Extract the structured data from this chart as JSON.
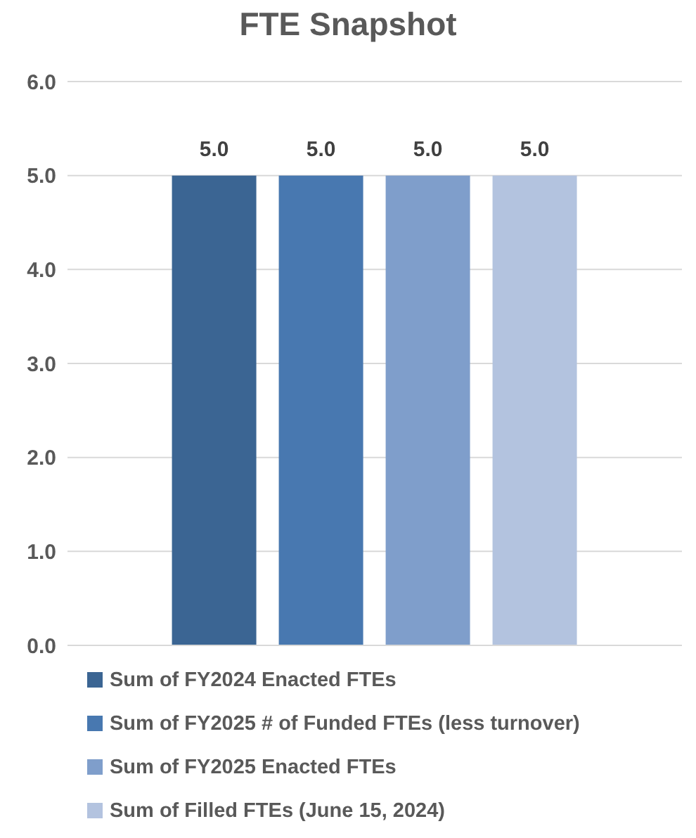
{
  "chart_data": {
    "type": "bar",
    "title": "FTE Snapshot",
    "categories": [
      null
    ],
    "series": [
      {
        "name": "Sum of FY2024 Enacted FTEs",
        "color": "#3b6593",
        "values": [
          5.0
        ],
        "value_labels": [
          "5.0"
        ]
      },
      {
        "name": "Sum of FY2025 # of Funded FTEs (less turnover)",
        "color": "#4878b0",
        "values": [
          5.0
        ],
        "value_labels": [
          "5.0"
        ]
      },
      {
        "name": "Sum of FY2025 Enacted FTEs",
        "color": "#7f9ecb",
        "values": [
          5.0
        ],
        "value_labels": [
          "5.0"
        ]
      },
      {
        "name": "Sum of Filled FTEs (June 15, 2024)",
        "color": "#b3c3df",
        "values": [
          5.0
        ],
        "value_labels": [
          "5.0"
        ]
      }
    ],
    "ylim": [
      0,
      6
    ],
    "yticks": [
      {
        "value": 0,
        "label": "0.0"
      },
      {
        "value": 1,
        "label": "1.0"
      },
      {
        "value": 2,
        "label": "2.0"
      },
      {
        "value": 3,
        "label": "3.0"
      },
      {
        "value": 4,
        "label": "4.0"
      },
      {
        "value": 5,
        "label": "5.0"
      },
      {
        "value": 6,
        "label": "6.0"
      }
    ],
    "grid": "y",
    "legend": "bottom"
  }
}
